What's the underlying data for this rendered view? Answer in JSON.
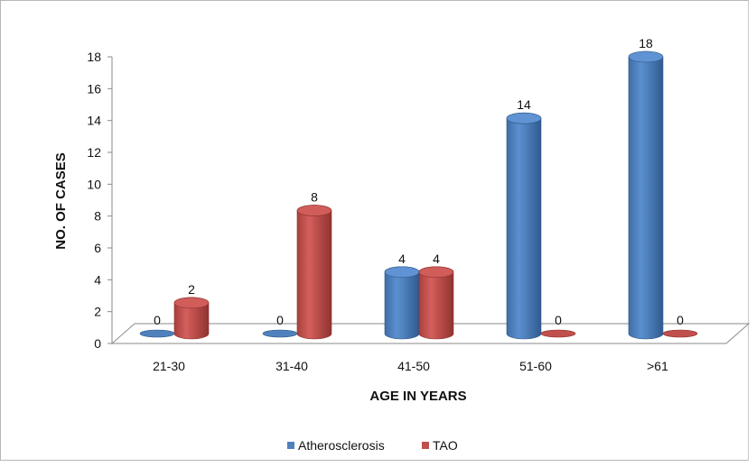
{
  "chart_data": {
    "type": "bar",
    "categories": [
      "21-30",
      "31-40",
      "41-50",
      "51-60",
      ">61"
    ],
    "series": [
      {
        "name": "Atherosclerosis",
        "values": [
          0,
          0,
          4,
          14,
          18
        ],
        "color": "#4F81BD"
      },
      {
        "name": "TAO",
        "values": [
          2,
          8,
          4,
          0,
          0
        ],
        "color": "#C0504D"
      }
    ],
    "xlabel": "AGE IN YEARS",
    "ylabel": "NO. OF CASES",
    "ylim": [
      0,
      18
    ],
    "yticks": [
      0,
      2,
      4,
      6,
      8,
      10,
      12,
      14,
      16,
      18
    ],
    "legend_position": "bottom",
    "data_labels": true,
    "style": "3d-cylinder"
  }
}
